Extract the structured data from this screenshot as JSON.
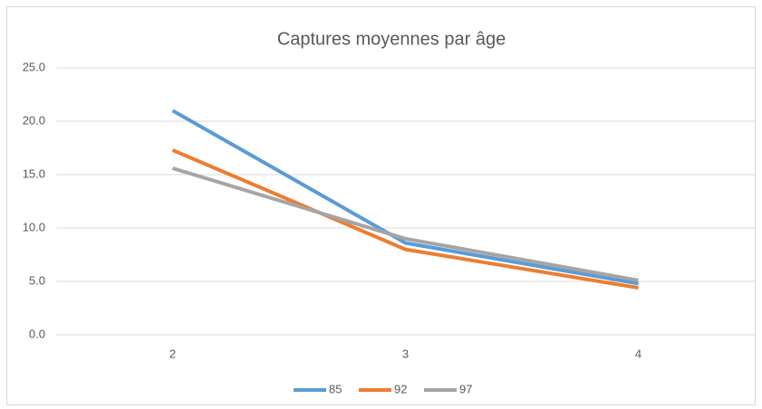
{
  "chart_data": {
    "type": "line",
    "title": "Captures moyennes par âge",
    "categories": [
      "2",
      "3",
      "4"
    ],
    "series": [
      {
        "name": "85",
        "color": "#5b9bd5",
        "values": [
          21.0,
          8.6,
          4.8
        ]
      },
      {
        "name": "92",
        "color": "#ed7d31",
        "values": [
          17.3,
          8.0,
          4.4
        ]
      },
      {
        "name": "97",
        "color": "#a5a5a5",
        "values": [
          15.6,
          9.0,
          5.1
        ]
      }
    ],
    "ylim": [
      0,
      25
    ],
    "yticks": [
      {
        "value": 0,
        "label": "0.0"
      },
      {
        "value": 5,
        "label": "5.0"
      },
      {
        "value": 10,
        "label": "10.0"
      },
      {
        "value": 15,
        "label": "15.0"
      },
      {
        "value": 20,
        "label": "20.0"
      },
      {
        "value": 25,
        "label": "25.0"
      }
    ],
    "grid": true,
    "legend": "bottom"
  }
}
